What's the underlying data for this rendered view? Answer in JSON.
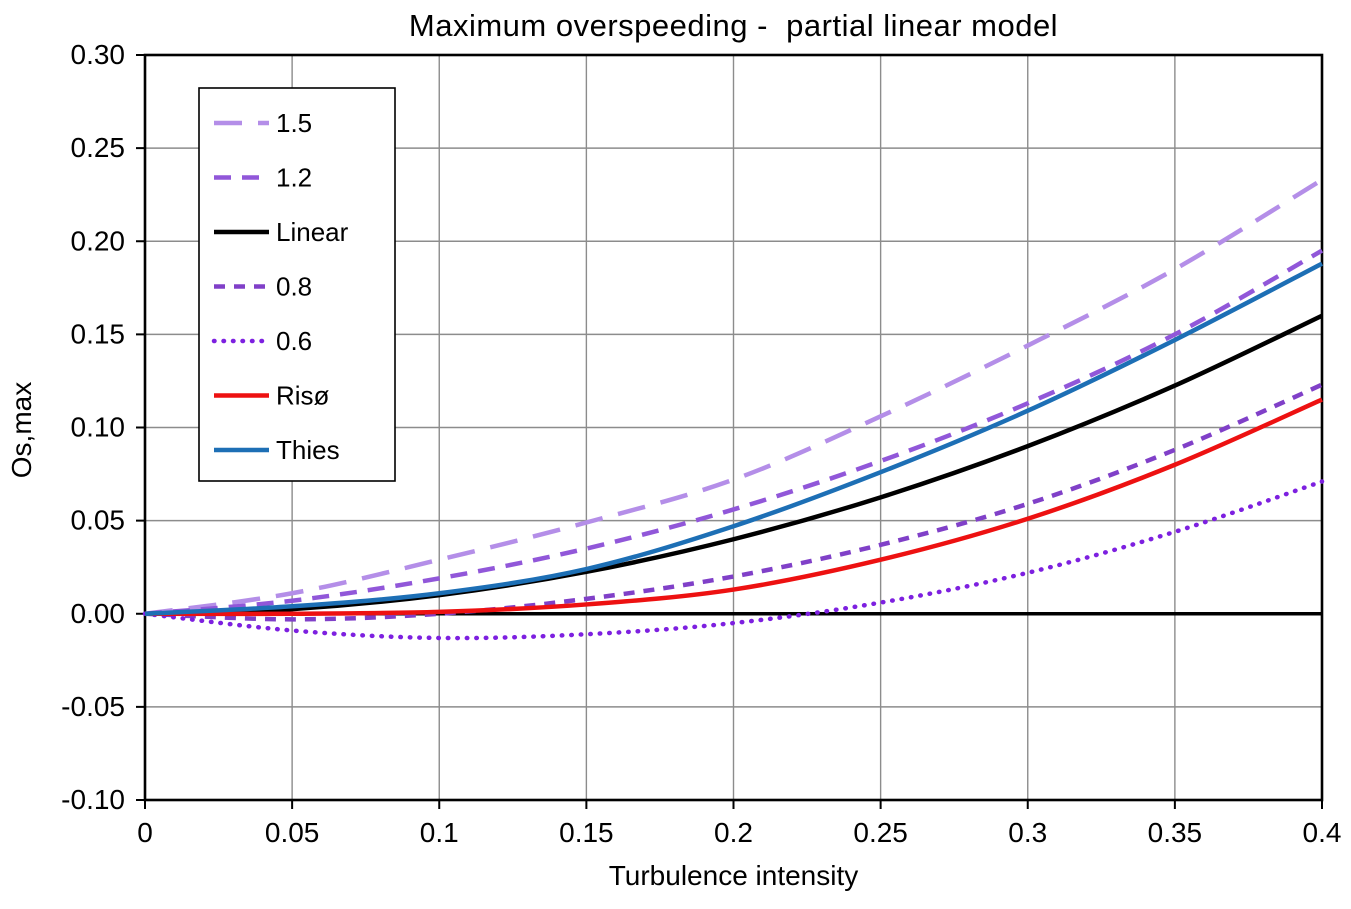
{
  "chart_data": {
    "type": "line",
    "title": "Maximum overspeeding -  partial linear model",
    "xlabel": "Turbulence intensity",
    "ylabel": "Os,max",
    "xlim": [
      0,
      0.4
    ],
    "ylim": [
      -0.1,
      0.3
    ],
    "grid": true,
    "legend_position": "upper-left-inside",
    "grid_color": "#8c8c8c",
    "axis_color": "#000000",
    "x_ticks": [
      {
        "value": 0,
        "label": "0"
      },
      {
        "value": 0.05,
        "label": "0.05"
      },
      {
        "value": 0.1,
        "label": "0.1"
      },
      {
        "value": 0.15,
        "label": "0.15"
      },
      {
        "value": 0.2,
        "label": "0.2"
      },
      {
        "value": 0.25,
        "label": "0.25"
      },
      {
        "value": 0.3,
        "label": "0.3"
      },
      {
        "value": 0.35,
        "label": "0.35"
      },
      {
        "value": 0.4,
        "label": "0.4"
      }
    ],
    "y_ticks": [
      {
        "value": 0.3,
        "label": "0.30"
      },
      {
        "value": 0.25,
        "label": "0.25"
      },
      {
        "value": 0.2,
        "label": "0.20"
      },
      {
        "value": 0.15,
        "label": "0.15"
      },
      {
        "value": 0.1,
        "label": "0.10"
      },
      {
        "value": 0.05,
        "label": "0.05"
      },
      {
        "value": 0.0,
        "label": "0.00"
      },
      {
        "value": -0.05,
        "label": "-0.05"
      },
      {
        "value": -0.1,
        "label": "-0.10"
      }
    ],
    "x": [
      0,
      0.05,
      0.1,
      0.15,
      0.2,
      0.25,
      0.3,
      0.35,
      0.4
    ],
    "series": [
      {
        "name": "1.5",
        "color": "#b48ee8",
        "dash": "longdash",
        "width": 4.5,
        "values": [
          0,
          0.011,
          0.029,
          0.049,
          0.072,
          0.106,
          0.144,
          0.185,
          0.233
        ]
      },
      {
        "name": "1.2",
        "color": "#9157d9",
        "dash": "dash",
        "width": 4.5,
        "values": [
          0,
          0.007,
          0.019,
          0.035,
          0.056,
          0.082,
          0.113,
          0.15,
          0.195
        ]
      },
      {
        "name": "Linear",
        "color": "#000000",
        "dash": "solid",
        "width": 4.5,
        "values": [
          0,
          0.0025,
          0.01,
          0.0225,
          0.04,
          0.0625,
          0.09,
          0.1225,
          0.16
        ]
      },
      {
        "name": "0.8",
        "color": "#8040c8",
        "dash": "shortdash",
        "width": 4.5,
        "values": [
          0,
          -0.003,
          0.0,
          0.008,
          0.02,
          0.037,
          0.059,
          0.088,
          0.123
        ]
      },
      {
        "name": "0.6",
        "color": "#7d20e0",
        "dash": "dot",
        "width": 4.5,
        "values": [
          0,
          -0.009,
          -0.013,
          -0.011,
          -0.005,
          0.006,
          0.022,
          0.044,
          0.071
        ]
      },
      {
        "name": "Risø",
        "color": "#ed1111",
        "dash": "solid",
        "width": 4.5,
        "values": [
          0,
          0.0,
          0.001,
          0.005,
          0.013,
          0.029,
          0.051,
          0.08,
          0.115
        ]
      },
      {
        "name": "Thies",
        "color": "#1d6fb5",
        "dash": "solid",
        "width": 4.5,
        "values": [
          0,
          0.004,
          0.011,
          0.024,
          0.047,
          0.076,
          0.109,
          0.147,
          0.188
        ]
      }
    ]
  }
}
